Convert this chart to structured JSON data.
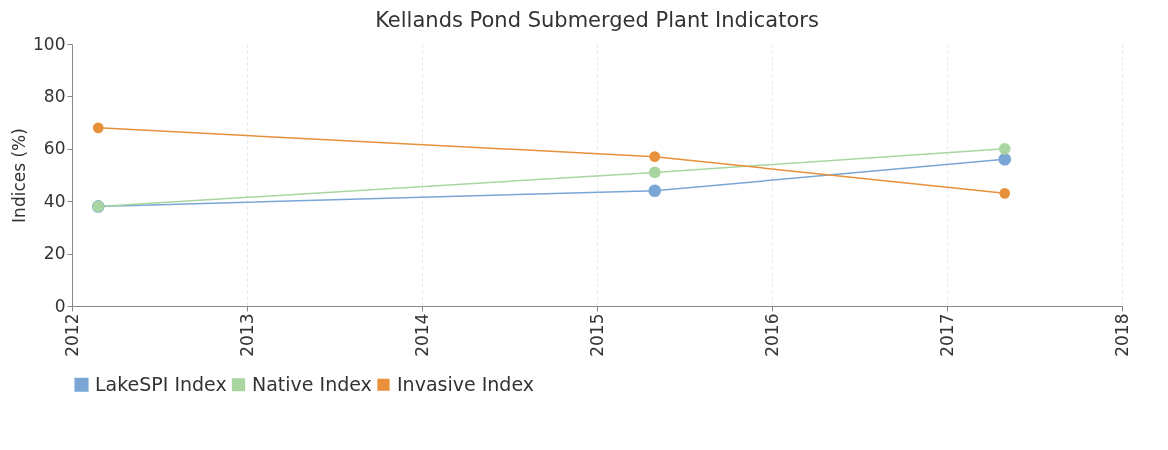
{
  "chart_data": {
    "type": "line",
    "title": "Kellands Pond Submerged Plant Indicators",
    "ylabel": "Indices (%)",
    "x": [
      2012.15,
      2015.33,
      2017.33
    ],
    "series": [
      {
        "name": "LakeSPI Index",
        "color": "#7aa6d6",
        "values": [
          38,
          44,
          56
        ]
      },
      {
        "name": "Native Index",
        "color": "#a8d5a0",
        "values": [
          38,
          51,
          60
        ]
      },
      {
        "name": "Invasive Index",
        "color": "#e8913a",
        "values": [
          68,
          57,
          43
        ]
      }
    ],
    "xlim": [
      2012,
      2018
    ],
    "xticks": [
      2012,
      2013,
      2014,
      2015,
      2016,
      2017,
      2018
    ],
    "ylim": [
      0,
      100
    ],
    "yticks": [
      0,
      20,
      40,
      60,
      80,
      100
    ],
    "grid": "x",
    "legend": "bottom",
    "marker": "circle",
    "line_style": "solid"
  }
}
